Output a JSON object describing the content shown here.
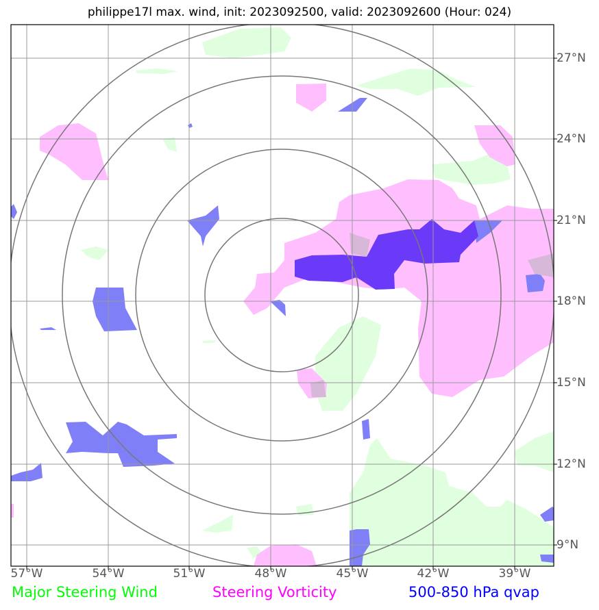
{
  "title": "philippe17l max. wind, init: 2023092500, valid: 2023092600 (Hour: 024)",
  "colors": {
    "wind": "#00ff00",
    "vorticity": "#ff00ff",
    "qvap": "#0000ff",
    "wind_fill": "#dfffdf",
    "vort_fill": "#ffbfff",
    "qvap_fill": "#7f7ff8",
    "qvap_core": "#6a3af8",
    "grid": "#999999",
    "ring": "#777777"
  },
  "axes": {
    "lon_labels": [
      "57°W",
      "54°W",
      "51°W",
      "48°W",
      "45°W",
      "42°W",
      "39°W"
    ],
    "lat_labels": [
      "27°N",
      "24°N",
      "21°N",
      "18°N",
      "15°N",
      "12°N",
      "9°N"
    ]
  },
  "legend": {
    "wind": "Major Steering Wind",
    "vorticity": "Steering Vorticity",
    "qvap": "500-850 hPa qvap"
  }
}
